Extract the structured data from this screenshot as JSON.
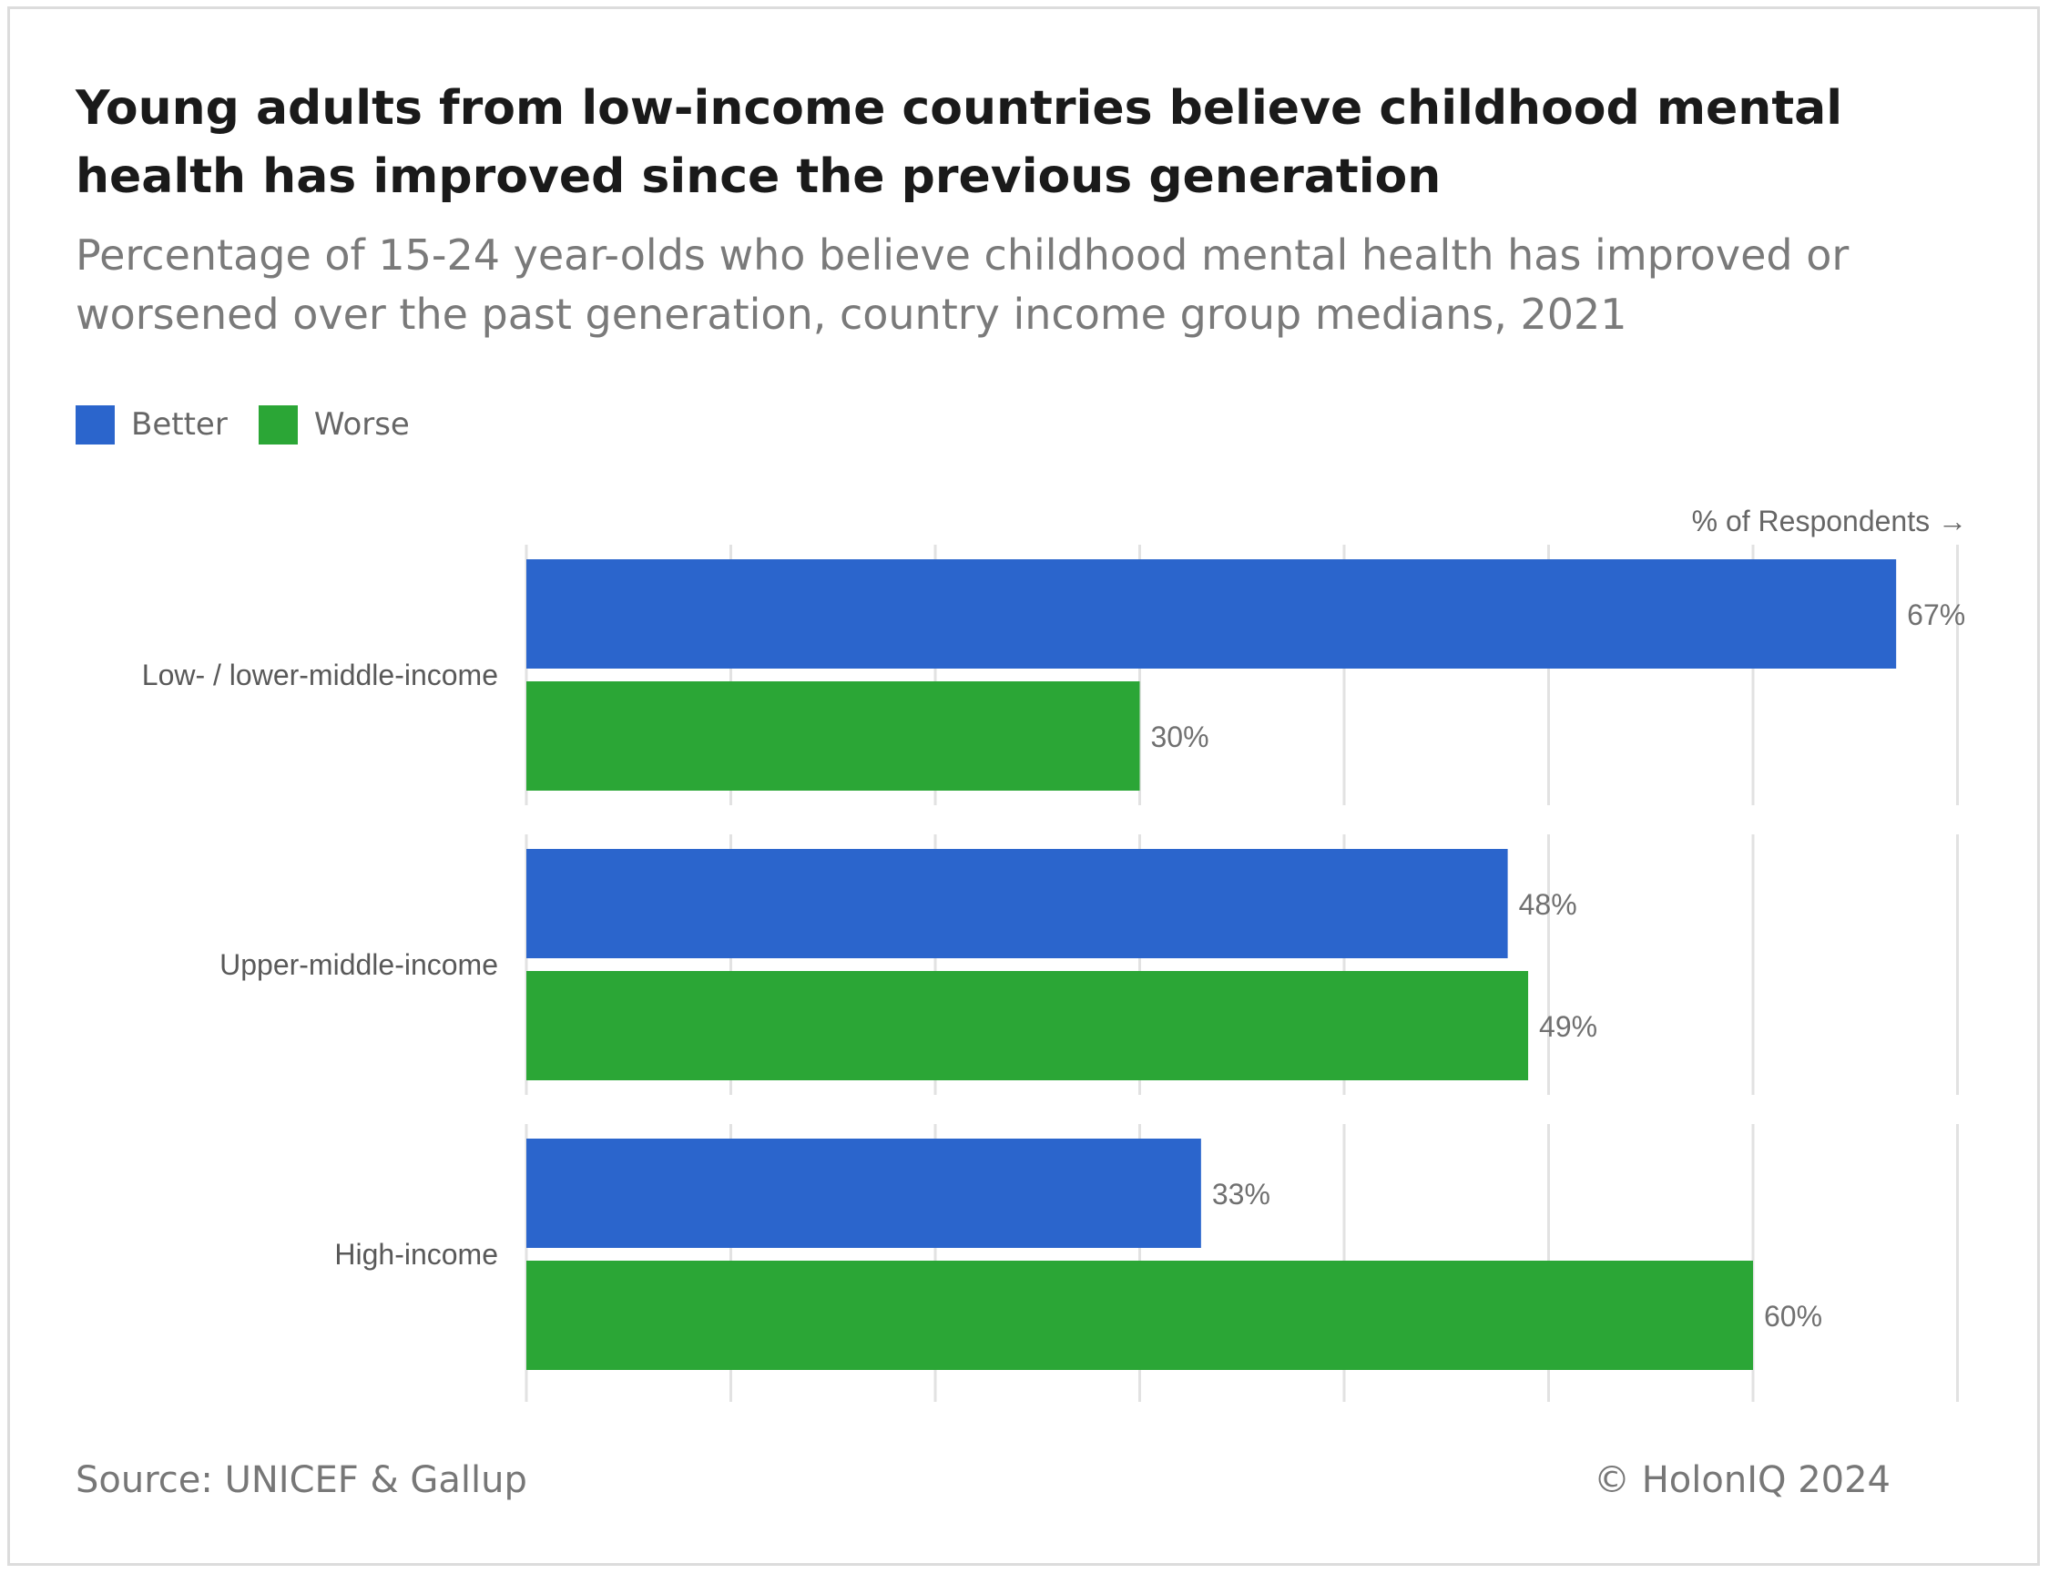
{
  "chart_data": {
    "type": "bar",
    "orientation": "horizontal",
    "title": "Young adults from low-income countries believe childhood mental health has improved since the previous generation",
    "subtitle": "Percentage of 15-24 year-olds who believe childhood mental health has improved or worsened over the past generation, country income group medians, 2021",
    "axis_label": "% of Respondents →",
    "categories": [
      "Low- / lower-middle-income",
      "Upper-middle-income",
      "High-income"
    ],
    "series": [
      {
        "name": "Better",
        "color": "#2b65cc",
        "values": [
          67,
          48,
          33
        ]
      },
      {
        "name": "Worse",
        "color": "#2ba636",
        "values": [
          30,
          49,
          60
        ]
      }
    ],
    "value_suffix": "%",
    "xlim": [
      0,
      70
    ],
    "grid": true,
    "legend_position": "top-left"
  },
  "footer": {
    "source": "Source: UNICEF & Gallup",
    "copyright": "© HolonIQ 2024"
  }
}
